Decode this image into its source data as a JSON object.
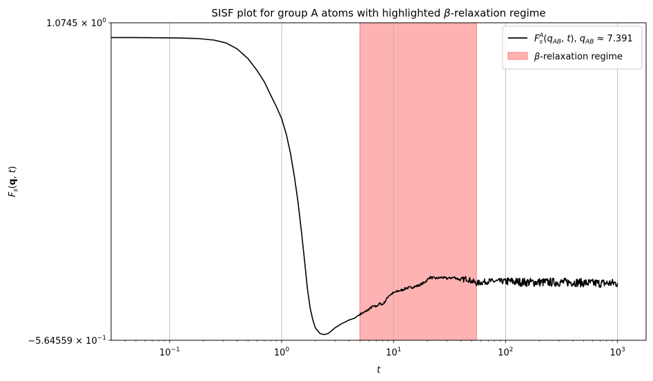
{
  "chart_data": {
    "type": "line",
    "title": "SISF plot for group A atoms with highlighted β-relaxation regime",
    "xlabel": "t",
    "ylabel": "F_s(q, t)",
    "x_scale": "log",
    "xlim": [
      0.03,
      1800
    ],
    "ylim": [
      -0.564559,
      1.0745
    ],
    "x_ticks": [
      {
        "value": 0.1,
        "base": "10",
        "exp": "−1"
      },
      {
        "value": 1,
        "base": "10",
        "exp": "0"
      },
      {
        "value": 10,
        "base": "10",
        "exp": "1"
      },
      {
        "value": 100,
        "base": "10",
        "exp": "2"
      },
      {
        "value": 1000,
        "base": "10",
        "exp": "3"
      }
    ],
    "y_ticks": [
      {
        "value": 1.0745,
        "mant": "1.0745",
        "base": "10",
        "exp": "0"
      },
      {
        "value": -0.564559,
        "mant": "−5.64559",
        "base": "10",
        "exp": "−1"
      }
    ],
    "grid": "x-major",
    "legend_position": "top-right",
    "line_color": "#000000",
    "span_color": "#ff7f7f",
    "legend": [
      {
        "label": "F_s^A(q_AB, t), q_AB ≈ 7.391",
        "kind": "line"
      },
      {
        "label": "β-relaxation regime",
        "kind": "patch"
      }
    ],
    "span": {
      "name": "β-relaxation regime",
      "x_start": 5.0,
      "x_end": 55.0
    },
    "series": [
      {
        "name": "F_s^A(q_AB, t), q_AB ≈ 7.391",
        "x": [
          0.03,
          0.05,
          0.08,
          0.12,
          0.18,
          0.25,
          0.32,
          0.4,
          0.5,
          0.6,
          0.7,
          0.8,
          0.9,
          1.0,
          1.1,
          1.2,
          1.3,
          1.4,
          1.5,
          1.6,
          1.7,
          1.8,
          1.9,
          2.0,
          2.2,
          2.4,
          2.6,
          2.8,
          3.0,
          3.2,
          3.4,
          3.7,
          4.0,
          4.5,
          5.0,
          5.5,
          6.0,
          6.5,
          7.0,
          7.5,
          8.0,
          8.5,
          9.0,
          10.0,
          11.0,
          12.0,
          13.0,
          15.0,
          17.0,
          19.0,
          21.0,
          24.0,
          27.0,
          30.0,
          35.0,
          40.0,
          45.0,
          50.0,
          55.0,
          70.0,
          100.0,
          150.0,
          250.0,
          400.0,
          600.0,
          1000.0
        ],
        "y": [
          0.998,
          0.998,
          0.997,
          0.996,
          0.993,
          0.985,
          0.97,
          0.94,
          0.89,
          0.83,
          0.77,
          0.7,
          0.64,
          0.58,
          0.5,
          0.4,
          0.28,
          0.15,
          0.0,
          -0.15,
          -0.3,
          -0.4,
          -0.46,
          -0.5,
          -0.53,
          -0.535,
          -0.53,
          -0.515,
          -0.5,
          -0.49,
          -0.48,
          -0.47,
          -0.46,
          -0.45,
          -0.43,
          -0.42,
          -0.405,
          -0.39,
          -0.39,
          -0.375,
          -0.38,
          -0.36,
          -0.335,
          -0.32,
          -0.31,
          -0.305,
          -0.295,
          -0.29,
          -0.28,
          -0.265,
          -0.24,
          -0.245,
          -0.24,
          -0.245,
          -0.24,
          -0.255,
          -0.245,
          -0.26,
          -0.27,
          -0.26,
          -0.26,
          -0.265,
          -0.265,
          -0.265,
          -0.27,
          -0.27
        ]
      }
    ]
  }
}
